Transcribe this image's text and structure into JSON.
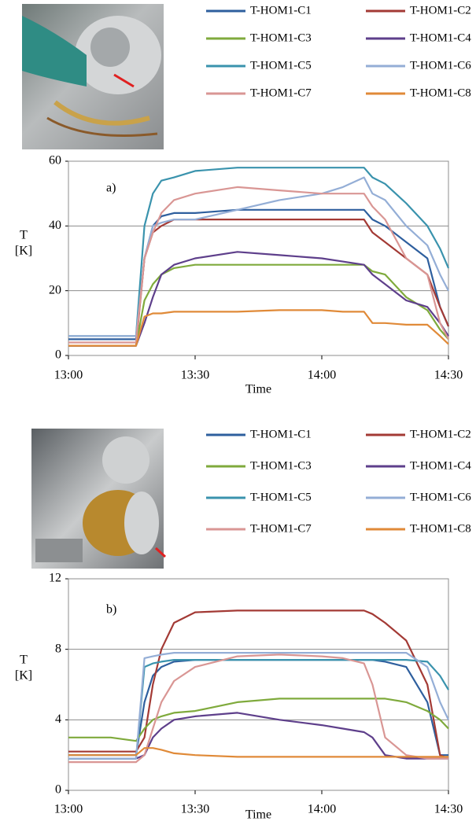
{
  "chart_data": [
    {
      "type": "line",
      "annotation": "a)",
      "xlabel": "Time",
      "ylabel": [
        "T",
        "[K]"
      ],
      "x": [
        "13:00",
        "13:10",
        "13:16",
        "13:18",
        "13:20",
        "13:22",
        "13:25",
        "13:30",
        "13:40",
        "13:50",
        "14:00",
        "14:05",
        "14:10",
        "14:12",
        "14:15",
        "14:20",
        "14:25",
        "14:28",
        "14:30"
      ],
      "xlim": [
        "13:00",
        "14:30"
      ],
      "xticks": [
        "13:00",
        "13:30",
        "14:00",
        "14:30"
      ],
      "ylim": [
        0,
        60
      ],
      "yticks": [
        0,
        20,
        40,
        60
      ],
      "grid": true,
      "series": [
        {
          "name": "T-HOM1-C1",
          "color": "#2e5f9e",
          "values": [
            5,
            5,
            5,
            30,
            40,
            43,
            44,
            44,
            45,
            45,
            45,
            45,
            45,
            42,
            40,
            35,
            30,
            15,
            9
          ]
        },
        {
          "name": "T-HOM1-C2",
          "color": "#a33a35",
          "values": [
            3,
            3,
            3,
            30,
            38,
            40,
            42,
            42,
            42,
            42,
            42,
            42,
            42,
            38,
            35,
            30,
            25,
            15,
            9
          ]
        },
        {
          "name": "T-HOM1-C3",
          "color": "#7faa3c",
          "values": [
            3,
            3,
            3,
            17,
            22,
            25,
            27,
            28,
            28,
            28,
            28,
            28,
            28,
            26,
            25,
            18,
            14,
            8,
            5
          ]
        },
        {
          "name": "T-HOM1-C4",
          "color": "#5e3f8b",
          "values": [
            3,
            3,
            3,
            10,
            18,
            25,
            28,
            30,
            32,
            31,
            30,
            29,
            28,
            25,
            22,
            17,
            15,
            10,
            6
          ]
        },
        {
          "name": "T-HOM1-C5",
          "color": "#3a93ad",
          "values": [
            6,
            6,
            6,
            40,
            50,
            54,
            55,
            57,
            58,
            58,
            58,
            58,
            58,
            55,
            53,
            47,
            40,
            33,
            27
          ]
        },
        {
          "name": "T-HOM1-C6",
          "color": "#94aed6",
          "values": [
            6,
            6,
            6,
            30,
            40,
            41,
            42,
            42,
            45,
            48,
            50,
            52,
            55,
            50,
            48,
            40,
            34,
            25,
            20
          ]
        },
        {
          "name": "T-HOM1-C7",
          "color": "#d99694",
          "values": [
            4,
            4,
            4,
            30,
            38,
            44,
            48,
            50,
            52,
            51,
            50,
            50,
            50,
            46,
            42,
            30,
            25,
            10,
            5
          ]
        },
        {
          "name": "T-HOM1-C8",
          "color": "#e08a38",
          "values": [
            3,
            3,
            3,
            12,
            13,
            13,
            13.5,
            13.5,
            13.5,
            14,
            14,
            13.5,
            13.5,
            10,
            10,
            9.5,
            9.5,
            6,
            3.5
          ]
        }
      ]
    },
    {
      "type": "line",
      "annotation": "b)",
      "xlabel": "Time",
      "ylabel": [
        "T",
        "[K]"
      ],
      "x": [
        "13:00",
        "13:10",
        "13:16",
        "13:18",
        "13:20",
        "13:22",
        "13:25",
        "13:30",
        "13:40",
        "13:50",
        "14:00",
        "14:05",
        "14:10",
        "14:12",
        "14:15",
        "14:20",
        "14:25",
        "14:28",
        "14:30"
      ],
      "xlim": [
        "13:00",
        "14:30"
      ],
      "xticks": [
        "13:00",
        "13:30",
        "14:00",
        "14:30"
      ],
      "ylim": [
        0,
        12
      ],
      "yticks": [
        0,
        4,
        8,
        12
      ],
      "grid": true,
      "series": [
        {
          "name": "T-HOM1-C1",
          "color": "#2e5f9e",
          "values": [
            2,
            2,
            2,
            5,
            6.5,
            7,
            7.3,
            7.4,
            7.4,
            7.4,
            7.4,
            7.4,
            7.4,
            7.4,
            7.3,
            7,
            5,
            2,
            2
          ]
        },
        {
          "name": "T-HOM1-C2",
          "color": "#a33a35",
          "values": [
            2.2,
            2.2,
            2.2,
            3,
            6,
            8,
            9.5,
            10.1,
            10.2,
            10.2,
            10.2,
            10.2,
            10.2,
            10,
            9.5,
            8.5,
            6,
            2,
            1.8
          ]
        },
        {
          "name": "T-HOM1-C3",
          "color": "#7faa3c",
          "values": [
            3,
            3,
            2.8,
            3.5,
            4,
            4.2,
            4.4,
            4.5,
            5,
            5.2,
            5.2,
            5.2,
            5.2,
            5.2,
            5.2,
            5,
            4.5,
            4,
            3.5
          ]
        },
        {
          "name": "T-HOM1-C4",
          "color": "#5e3f8b",
          "values": [
            1.8,
            1.8,
            1.8,
            2,
            3,
            3.5,
            4,
            4.2,
            4.4,
            4,
            3.7,
            3.5,
            3.3,
            3,
            2,
            1.8,
            1.8,
            1.8,
            1.8
          ]
        },
        {
          "name": "T-HOM1-C5",
          "color": "#3a93ad",
          "values": [
            1.8,
            1.8,
            1.8,
            7,
            7.2,
            7.3,
            7.4,
            7.4,
            7.4,
            7.4,
            7.4,
            7.4,
            7.4,
            7.4,
            7.4,
            7.4,
            7.3,
            6.5,
            5.7
          ]
        },
        {
          "name": "T-HOM1-C6",
          "color": "#94aed6",
          "values": [
            1.8,
            1.8,
            1.8,
            7.5,
            7.6,
            7.7,
            7.8,
            7.8,
            7.8,
            7.8,
            7.8,
            7.8,
            7.8,
            7.8,
            7.8,
            7.8,
            7,
            5,
            4
          ]
        },
        {
          "name": "T-HOM1-C7",
          "color": "#d99694",
          "values": [
            1.6,
            1.6,
            1.6,
            2,
            3.5,
            5,
            6.2,
            7,
            7.6,
            7.7,
            7.6,
            7.5,
            7.2,
            6,
            3,
            2,
            1.8,
            1.8,
            1.8
          ]
        },
        {
          "name": "T-HOM1-C8",
          "color": "#e08a38",
          "values": [
            2,
            2,
            2,
            2.4,
            2.4,
            2.3,
            2.1,
            2,
            1.9,
            1.9,
            1.9,
            1.9,
            1.9,
            1.9,
            1.9,
            1.9,
            1.9,
            1.9,
            1.9
          ]
        }
      ]
    }
  ]
}
